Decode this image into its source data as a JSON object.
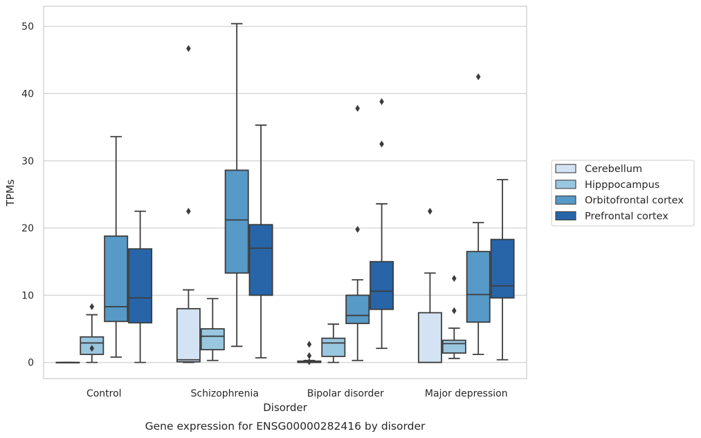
{
  "chart_data": {
    "type": "box",
    "title": "",
    "caption": "Gene expression for ENSG00000282416 by disorder",
    "xlabel": "Disorder",
    "ylabel": "TPMs",
    "ylim": [
      -2.4,
      53
    ],
    "yticks": [
      0,
      10,
      20,
      30,
      40,
      50
    ],
    "grid": "horizontal",
    "legend_position": "right",
    "categories": [
      "Control",
      "Schizophrenia",
      "Bipolar disorder",
      "Major depression"
    ],
    "series": [
      {
        "name": "Cerebellum",
        "color": "#d4e3f3",
        "boxes": [
          {
            "whisker_low": 0,
            "q1": 0,
            "median": 0,
            "q3": 0,
            "whisker_high": 0,
            "outliers": []
          },
          {
            "whisker_low": 0,
            "q1": 0.1,
            "median": 0.4,
            "q3": 8.0,
            "whisker_high": 10.8,
            "outliers": [
              22.5,
              46.7
            ]
          },
          {
            "whisker_low": 0,
            "q1": 0,
            "median": 0.1,
            "q3": 0.2,
            "whisker_high": 0.3,
            "outliers": [
              0.1,
              1.0,
              2.7
            ]
          },
          {
            "whisker_low": 0,
            "q1": 0,
            "median": 0,
            "q3": 7.4,
            "whisker_high": 13.3,
            "outliers": [
              22.5
            ]
          }
        ]
      },
      {
        "name": "Hipppocampus",
        "color": "#9ac7e0",
        "boxes": [
          {
            "whisker_low": 0,
            "q1": 1.2,
            "median": 2.9,
            "q3": 3.8,
            "whisker_high": 7.1,
            "outliers": [
              2.1,
              8.3
            ]
          },
          {
            "whisker_low": 0.3,
            "q1": 1.9,
            "median": 3.9,
            "q3": 5.0,
            "whisker_high": 9.5,
            "outliers": []
          },
          {
            "whisker_low": 0,
            "q1": 0.9,
            "median": 2.9,
            "q3": 3.6,
            "whisker_high": 5.7,
            "outliers": []
          },
          {
            "whisker_low": 0.6,
            "q1": 1.4,
            "median": 2.8,
            "q3": 3.3,
            "whisker_high": 5.1,
            "outliers": [
              7.7,
              12.5
            ]
          }
        ]
      },
      {
        "name": "Orbitofrontal cortex",
        "color": "#5799c7",
        "boxes": [
          {
            "whisker_low": 0.8,
            "q1": 6.1,
            "median": 8.3,
            "q3": 18.8,
            "whisker_high": 33.6,
            "outliers": []
          },
          {
            "whisker_low": 2.4,
            "q1": 13.3,
            "median": 21.2,
            "q3": 28.6,
            "whisker_high": 50.4,
            "outliers": []
          },
          {
            "whisker_low": 0.3,
            "q1": 5.8,
            "median": 7.0,
            "q3": 10.0,
            "whisker_high": 12.3,
            "outliers": [
              19.8,
              37.8
            ]
          },
          {
            "whisker_low": 1.2,
            "q1": 6.0,
            "median": 10.1,
            "q3": 16.5,
            "whisker_high": 20.8,
            "outliers": [
              42.5
            ]
          }
        ]
      },
      {
        "name": "Prefrontal cortex",
        "color": "#2765a8",
        "boxes": [
          {
            "whisker_low": 0,
            "q1": 5.9,
            "median": 9.6,
            "q3": 16.9,
            "whisker_high": 22.5,
            "outliers": []
          },
          {
            "whisker_low": 0.7,
            "q1": 10.0,
            "median": 17.0,
            "q3": 20.5,
            "whisker_high": 35.3,
            "outliers": []
          },
          {
            "whisker_low": 2.1,
            "q1": 7.9,
            "median": 10.6,
            "q3": 15.0,
            "whisker_high": 23.6,
            "outliers": [
              32.5,
              38.8
            ]
          },
          {
            "whisker_low": 0.4,
            "q1": 9.6,
            "median": 11.4,
            "q3": 18.3,
            "whisker_high": 27.2,
            "outliers": []
          }
        ]
      }
    ]
  }
}
